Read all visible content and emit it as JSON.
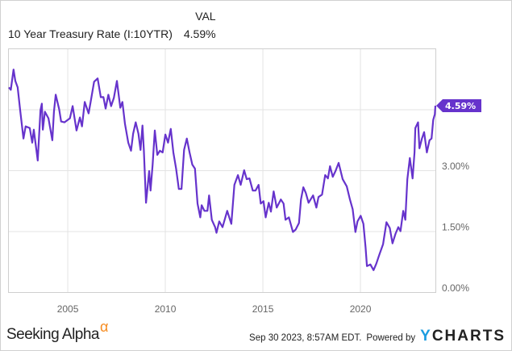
{
  "legend": {
    "column_header": "VAL",
    "series_name": "10 Year Treasury Rate (I:10YTR)",
    "series_value": "4.59%"
  },
  "chart_data": {
    "type": "line",
    "title": "",
    "xlabel": "",
    "ylabel": "",
    "x_ticks": [
      "2005",
      "2010",
      "2015",
      "2020"
    ],
    "y_ticks": [
      "0.00%",
      "1.50%",
      "3.00%"
    ],
    "xlim": [
      2001.94,
      2023.84
    ],
    "ylim": [
      0,
      6.0
    ],
    "grid": true,
    "last_value_label": "4.59%",
    "color": "#6633cc",
    "series": [
      {
        "name": "10 Year Treasury Rate (I:10YTR)",
        "x": [
          2001.98,
          2002.08,
          2002.22,
          2002.31,
          2002.43,
          2002.56,
          2002.73,
          2002.84,
          2003.05,
          2003.18,
          2003.26,
          2003.46,
          2003.6,
          2003.67,
          2003.72,
          2003.83,
          2004.01,
          2004.21,
          2004.29,
          2004.38,
          2004.56,
          2004.66,
          2004.83,
          2005.11,
          2005.25,
          2005.45,
          2005.62,
          2005.73,
          2005.87,
          2006.07,
          2006.17,
          2006.35,
          2006.53,
          2006.69,
          2006.83,
          2006.94,
          2007.08,
          2007.22,
          2007.36,
          2007.52,
          2007.69,
          2007.8,
          2007.93,
          2008.1,
          2008.24,
          2008.35,
          2008.48,
          2008.62,
          2008.73,
          2008.83,
          2008.9,
          2009.01,
          2009.17,
          2009.24,
          2009.35,
          2009.46,
          2009.59,
          2009.72,
          2009.86,
          2010.0,
          2010.14,
          2010.28,
          2010.41,
          2010.55,
          2010.69,
          2010.83,
          2010.96,
          2011.1,
          2011.24,
          2011.38,
          2011.52,
          2011.65,
          2011.79,
          2011.86,
          2012.0,
          2012.16,
          2012.24,
          2012.38,
          2012.55,
          2012.62,
          2012.76,
          2012.93,
          2013.17,
          2013.38,
          2013.54,
          2013.72,
          2013.86,
          2014.04,
          2014.17,
          2014.31,
          2014.48,
          2014.62,
          2014.78,
          2014.89,
          2015.03,
          2015.14,
          2015.3,
          2015.41,
          2015.55,
          2015.71,
          2015.92,
          2016.06,
          2016.16,
          2016.33,
          2016.54,
          2016.68,
          2016.85,
          2016.95,
          2017.07,
          2017.2,
          2017.34,
          2017.57,
          2017.74,
          2017.85,
          2018.03,
          2018.19,
          2018.33,
          2018.44,
          2018.58,
          2018.72,
          2018.88,
          2019.09,
          2019.3,
          2019.46,
          2019.6,
          2019.74,
          2019.85,
          2020.01,
          2020.15,
          2020.26,
          2020.33,
          2020.51,
          2020.67,
          2020.81,
          2020.95,
          2021.16,
          2021.33,
          2021.5,
          2021.64,
          2021.8,
          2021.94,
          2022.05,
          2022.19,
          2022.3,
          2022.4,
          2022.53,
          2022.67,
          2022.77,
          2022.81,
          2022.95,
          2023.02,
          2023.15,
          2023.26,
          2023.4,
          2023.54,
          2023.64,
          2023.73,
          2023.81,
          2023.84
        ],
        "y": [
          5.04,
          4.98,
          5.48,
          5.2,
          5.04,
          4.48,
          3.78,
          4.08,
          4.04,
          3.68,
          4.0,
          3.24,
          4.48,
          4.64,
          4.0,
          4.44,
          4.28,
          3.74,
          4.44,
          4.86,
          4.5,
          4.2,
          4.18,
          4.28,
          4.58,
          3.98,
          4.3,
          4.08,
          4.68,
          4.4,
          4.68,
          5.18,
          5.26,
          4.8,
          4.8,
          4.52,
          4.86,
          4.58,
          4.78,
          5.2,
          4.54,
          4.68,
          4.14,
          3.68,
          3.48,
          3.9,
          4.18,
          3.9,
          3.5,
          4.1,
          3.5,
          2.2,
          2.98,
          2.5,
          3.14,
          3.98,
          3.38,
          3.48,
          3.44,
          3.88,
          3.68,
          4.02,
          3.44,
          3.04,
          2.54,
          2.54,
          3.5,
          3.78,
          3.44,
          3.14,
          3.04,
          2.18,
          1.84,
          2.14,
          2.0,
          2.0,
          2.38,
          1.78,
          1.6,
          1.46,
          1.74,
          1.6,
          2.0,
          1.68,
          2.64,
          2.88,
          2.64,
          3.0,
          2.78,
          2.8,
          2.5,
          2.5,
          2.64,
          2.18,
          2.24,
          1.84,
          2.2,
          1.98,
          2.48,
          2.08,
          2.28,
          2.18,
          1.78,
          1.84,
          1.48,
          1.54,
          1.7,
          2.28,
          2.58,
          2.44,
          2.2,
          2.38,
          2.08,
          2.34,
          2.4,
          2.88,
          2.8,
          3.1,
          2.84,
          2.98,
          3.18,
          2.78,
          2.6,
          2.28,
          2.04,
          1.48,
          1.74,
          1.88,
          1.68,
          1.1,
          0.64,
          0.68,
          0.54,
          0.7,
          0.9,
          1.18,
          1.72,
          1.58,
          1.2,
          1.44,
          1.6,
          1.5,
          2.0,
          1.78,
          2.78,
          3.3,
          2.8,
          3.44,
          4.04,
          4.18,
          3.54,
          3.78,
          3.94,
          3.44,
          3.74,
          3.78,
          4.24,
          4.38,
          4.59
        ]
      }
    ]
  },
  "footer": {
    "brand": "Seeking Alpha",
    "brand_mark": "α",
    "timestamp": "Sep 30 2023, 8:57AM EDT.",
    "powered_by": "Powered by",
    "provider_y": "Y",
    "provider_rest": "CHARTS"
  }
}
